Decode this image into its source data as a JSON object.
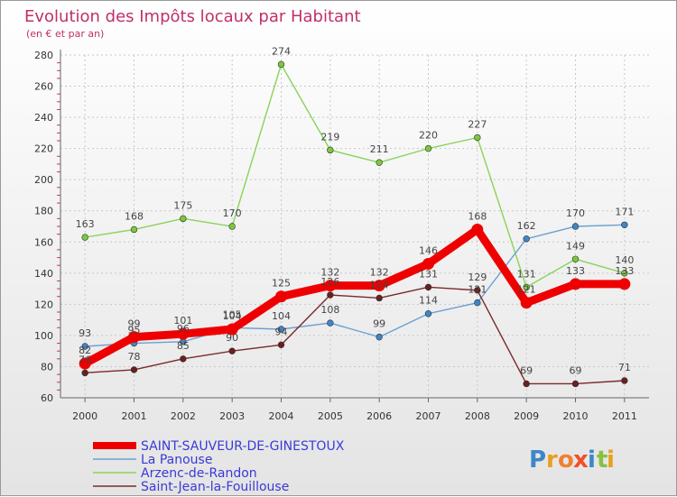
{
  "chart_data": {
    "type": "line",
    "title": "Evolution des Impôts locaux par Habitant",
    "subtitle": "(en € et par an)",
    "x": [
      "2000",
      "2001",
      "2002",
      "2003",
      "2004",
      "2005",
      "2006",
      "2007",
      "2008",
      "2009",
      "2010",
      "2011"
    ],
    "ylim": [
      60,
      280
    ],
    "yticks": [
      "60",
      "80",
      "100",
      "120",
      "140",
      "160",
      "180",
      "200",
      "220",
      "240",
      "260",
      "280"
    ],
    "series": [
      {
        "name": "Arzenc-de-Randon",
        "color": "#88d45a",
        "marker": "#7cc83e",
        "values": [
          163,
          168,
          175,
          170,
          274,
          219,
          211,
          220,
          227,
          131,
          149,
          140
        ],
        "labels": [
          "163",
          "168",
          "175",
          "170",
          "274",
          "219",
          "211",
          "220",
          "227",
          "131",
          "149",
          "140"
        ]
      },
      {
        "name": "La Panouse",
        "color": "#6aa0d0",
        "marker": "#3f86c8",
        "values": [
          93,
          95,
          96,
          105,
          104,
          108,
          99,
          114,
          121,
          162,
          170,
          171
        ],
        "labels": [
          "93",
          "95",
          "96",
          "105",
          "104",
          "108",
          "99",
          "114",
          "121",
          "162",
          "170",
          "171"
        ]
      },
      {
        "name": "Saint-Jean-la-Fouillouse",
        "color": "#7a2a2a",
        "marker": "#6a1f1f",
        "values": [
          76,
          78,
          85,
          90,
          94,
          126,
          124,
          131,
          129,
          69,
          69,
          71
        ],
        "labels": [
          "76",
          "78",
          "85",
          "90",
          "94",
          "126",
          "124",
          "131",
          "129",
          "69",
          "69",
          "71"
        ]
      },
      {
        "name": "SAINT-SAUVEUR-DE-GINESTOUX",
        "color": "#ee0000",
        "marker": "#ee0000",
        "values": [
          82,
          99,
          101,
          104,
          125,
          132,
          132,
          146,
          168,
          121,
          133,
          133
        ],
        "labels": [
          "82",
          "99",
          "101",
          "104",
          "125",
          "132",
          "132",
          "146",
          "168",
          "121",
          "133",
          "133"
        ]
      }
    ],
    "legend": [
      {
        "name": "SAINT-SAUVEUR-DE-GINESTOUX",
        "color": "#ee0000"
      },
      {
        "name": "La Panouse",
        "color": "#6aa0d0"
      },
      {
        "name": "Arzenc-de-Randon",
        "color": "#88d45a"
      },
      {
        "name": "Saint-Jean-la-Fouillouse",
        "color": "#7a2a2a"
      }
    ],
    "legend_position": "bottom-left"
  },
  "logo": {
    "text": "Proxiti",
    "letters": [
      "P",
      "r",
      "o",
      "x",
      "i",
      "t",
      "i"
    ],
    "colors": [
      "#3f86c8",
      "#e8a020",
      "#f08030",
      "#f05028",
      "#3f86c8",
      "#88c040",
      "#e8a020"
    ]
  }
}
